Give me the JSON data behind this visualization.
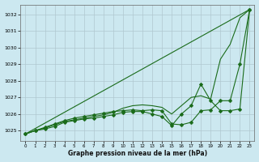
{
  "title": "Graphe pression niveau de la mer (hPa)",
  "bg_color": "#cce8f0",
  "grid_color": "#b0c8d0",
  "line_color": "#1a6b1a",
  "xlim": [
    -0.5,
    23.5
  ],
  "ylim": [
    1024.4,
    1032.6
  ],
  "yticks": [
    1025,
    1026,
    1027,
    1028,
    1029,
    1030,
    1031,
    1032
  ],
  "xticks": [
    0,
    1,
    2,
    3,
    4,
    5,
    6,
    7,
    8,
    9,
    10,
    11,
    12,
    13,
    14,
    15,
    16,
    17,
    18,
    19,
    20,
    21,
    22,
    23
  ],
  "series": [
    {
      "x": [
        0,
        23
      ],
      "y": [
        1024.8,
        1032.3
      ],
      "marker": null,
      "markersize": 0,
      "linewidth": 0.8
    },
    {
      "x": [
        0,
        1,
        2,
        3,
        4,
        5,
        6,
        7,
        8,
        9,
        10,
        11,
        12,
        13,
        14,
        15,
        16,
        17,
        18,
        19,
        20,
        21,
        22,
        23
      ],
      "y": [
        1024.8,
        1025.0,
        1025.15,
        1025.35,
        1025.55,
        1025.65,
        1025.75,
        1025.85,
        1025.95,
        1026.1,
        1026.35,
        1026.5,
        1026.55,
        1026.5,
        1026.4,
        1026.0,
        1026.5,
        1027.0,
        1027.1,
        1026.9,
        1029.3,
        1030.2,
        1031.8,
        1032.3
      ],
      "marker": null,
      "markersize": 0,
      "linewidth": 0.8
    },
    {
      "x": [
        0,
        1,
        2,
        3,
        4,
        5,
        6,
        7,
        8,
        9,
        10,
        11,
        12,
        13,
        14,
        15,
        16,
        17,
        18,
        19,
        20,
        21,
        22,
        23
      ],
      "y": [
        1024.8,
        1025.0,
        1025.1,
        1025.25,
        1025.5,
        1025.6,
        1025.7,
        1025.75,
        1025.85,
        1025.95,
        1026.1,
        1026.15,
        1026.15,
        1026.0,
        1025.85,
        1025.3,
        1026.0,
        1026.5,
        1027.8,
        1026.8,
        1026.2,
        1026.2,
        1026.3,
        1032.3
      ],
      "marker": "D",
      "markersize": 2.0,
      "linewidth": 0.8
    },
    {
      "x": [
        0,
        1,
        2,
        3,
        4,
        5,
        6,
        7,
        8,
        9,
        10,
        11,
        12,
        13,
        14,
        15,
        16,
        17,
        18,
        19,
        20,
        21,
        22,
        23
      ],
      "y": [
        1024.8,
        1025.0,
        1025.2,
        1025.4,
        1025.6,
        1025.75,
        1025.85,
        1025.95,
        1026.05,
        1026.15,
        1026.2,
        1026.25,
        1026.2,
        1026.25,
        1026.2,
        1025.4,
        1025.35,
        1025.5,
        1026.2,
        1026.25,
        1026.8,
        1026.8,
        1029.0,
        1032.3
      ],
      "marker": "P",
      "markersize": 2.5,
      "linewidth": 0.8
    }
  ]
}
